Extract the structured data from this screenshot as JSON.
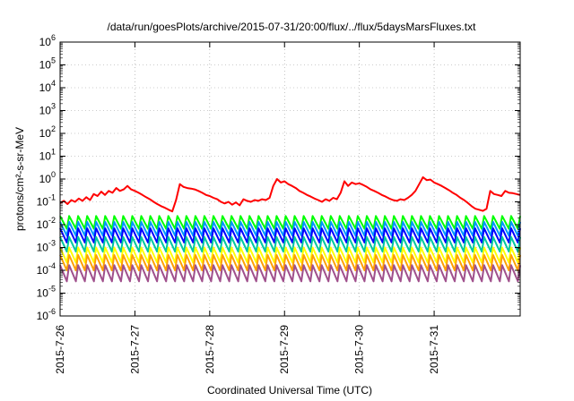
{
  "chart_data": {
    "type": "line",
    "title": "/data/run/goesPlots/archive/2015-07-31/20:00/flux/../flux/5daysMarsFluxes.txt",
    "xlabel": "Coordinated Universal Time (UTC)",
    "ylabel": "protons/cm²-s-sr-MeV",
    "yscale": "log",
    "ylim": [
      1e-06,
      1000000.0
    ],
    "xlim": [
      0,
      6.15
    ],
    "x_unit": "days since 2015-7-26 00:00 UTC",
    "grid": true,
    "y_ticks": [
      {
        "exp": -6,
        "label_base": "10",
        "label_exp": "-6"
      },
      {
        "exp": -5,
        "label_base": "10",
        "label_exp": "-5"
      },
      {
        "exp": -4,
        "label_base": "10",
        "label_exp": "-4"
      },
      {
        "exp": -3,
        "label_base": "10",
        "label_exp": "-3"
      },
      {
        "exp": -2,
        "label_base": "10",
        "label_exp": "-2"
      },
      {
        "exp": -1,
        "label_base": "10",
        "label_exp": "-1"
      },
      {
        "exp": 0,
        "label_base": "10",
        "label_exp": "0"
      },
      {
        "exp": 1,
        "label_base": "10",
        "label_exp": "1"
      },
      {
        "exp": 2,
        "label_base": "10",
        "label_exp": "2"
      },
      {
        "exp": 3,
        "label_base": "10",
        "label_exp": "3"
      },
      {
        "exp": 4,
        "label_base": "10",
        "label_exp": "4"
      },
      {
        "exp": 5,
        "label_base": "10",
        "label_exp": "5"
      },
      {
        "exp": 6,
        "label_base": "10",
        "label_exp": "6"
      }
    ],
    "x_ticks": [
      {
        "day": 0,
        "label": "2015-7-26"
      },
      {
        "day": 1,
        "label": "2015-7-27"
      },
      {
        "day": 2,
        "label": "2015-7-28"
      },
      {
        "day": 3,
        "label": "2015-7-29"
      },
      {
        "day": 4,
        "label": "2015-7-30"
      },
      {
        "day": 5,
        "label": "2015-7-31"
      }
    ],
    "series": [
      {
        "color": "#ff0000",
        "x": [
          0.0,
          0.05,
          0.1,
          0.15,
          0.2,
          0.25,
          0.3,
          0.35,
          0.4,
          0.45,
          0.5,
          0.55,
          0.6,
          0.65,
          0.7,
          0.75,
          0.8,
          0.85,
          0.9,
          0.95,
          1.0,
          1.05,
          1.1,
          1.15,
          1.2,
          1.25,
          1.3,
          1.35,
          1.4,
          1.45,
          1.5,
          1.55,
          1.6,
          1.65,
          1.7,
          1.75,
          1.8,
          1.85,
          1.9,
          1.95,
          2.0,
          2.05,
          2.1,
          2.15,
          2.2,
          2.25,
          2.3,
          2.35,
          2.4,
          2.45,
          2.5,
          2.55,
          2.6,
          2.65,
          2.7,
          2.75,
          2.8,
          2.85,
          2.9,
          2.95,
          3.0,
          3.05,
          3.1,
          3.15,
          3.2,
          3.25,
          3.3,
          3.35,
          3.4,
          3.45,
          3.5,
          3.55,
          3.6,
          3.65,
          3.7,
          3.75,
          3.8,
          3.85,
          3.9,
          3.95,
          4.0,
          4.05,
          4.1,
          4.15,
          4.2,
          4.25,
          4.3,
          4.35,
          4.4,
          4.45,
          4.5,
          4.55,
          4.6,
          4.65,
          4.7,
          4.75,
          4.8,
          4.85,
          4.9,
          4.95,
          5.0,
          5.05,
          5.1,
          5.15,
          5.2,
          5.25,
          5.3,
          5.35,
          5.4,
          5.45,
          5.5,
          5.55,
          5.6,
          5.65,
          5.7,
          5.75,
          5.8,
          5.85,
          5.9,
          5.95,
          6.0,
          6.05,
          6.1,
          6.15
        ],
        "y": [
          0.09,
          0.11,
          0.08,
          0.12,
          0.1,
          0.14,
          0.11,
          0.16,
          0.12,
          0.22,
          0.18,
          0.28,
          0.2,
          0.3,
          0.25,
          0.4,
          0.3,
          0.35,
          0.5,
          0.35,
          0.3,
          0.25,
          0.2,
          0.16,
          0.13,
          0.1,
          0.08,
          0.065,
          0.055,
          0.045,
          0.038,
          0.12,
          0.6,
          0.45,
          0.4,
          0.38,
          0.35,
          0.3,
          0.25,
          0.2,
          0.18,
          0.15,
          0.13,
          0.1,
          0.085,
          0.1,
          0.075,
          0.095,
          0.07,
          0.13,
          0.11,
          0.1,
          0.12,
          0.11,
          0.13,
          0.12,
          0.15,
          0.5,
          1.0,
          0.7,
          0.8,
          0.6,
          0.5,
          0.4,
          0.3,
          0.25,
          0.2,
          0.17,
          0.14,
          0.12,
          0.1,
          0.13,
          0.11,
          0.15,
          0.13,
          0.25,
          0.8,
          0.5,
          0.7,
          0.6,
          0.65,
          0.55,
          0.45,
          0.35,
          0.3,
          0.25,
          0.2,
          0.17,
          0.14,
          0.12,
          0.11,
          0.13,
          0.12,
          0.15,
          0.2,
          0.3,
          0.6,
          1.2,
          0.9,
          0.95,
          0.7,
          0.6,
          0.5,
          0.4,
          0.32,
          0.25,
          0.2,
          0.15,
          0.12,
          0.09,
          0.065,
          0.05,
          0.045,
          0.04,
          0.05,
          0.3,
          0.22,
          0.2,
          0.18,
          0.3,
          0.25,
          0.24,
          0.22,
          0.2
        ]
      },
      {
        "color": "#00ff00",
        "base": 0.012,
        "amp": 2.0,
        "dip": 0.012
      },
      {
        "color": "#0096ff",
        "base": 0.006,
        "amp": 2.2,
        "dip": 0.006
      },
      {
        "color": "#0000ff",
        "base": 0.003,
        "amp": 2.3,
        "dip": 0.003
      },
      {
        "color": "#00c8a0",
        "base": 0.0012,
        "amp": 2.4,
        "dip": 0.0012
      },
      {
        "color": "#ffff00",
        "base": 0.0004,
        "amp": 2.5,
        "dip": 0.0004
      },
      {
        "color": "#ffa000",
        "base": 0.00018,
        "amp": 2.6,
        "dip": 0.00018
      },
      {
        "color": "#a0508c",
        "base": 6e-05,
        "amp": 2.8,
        "dip": 6e-05
      }
    ]
  }
}
